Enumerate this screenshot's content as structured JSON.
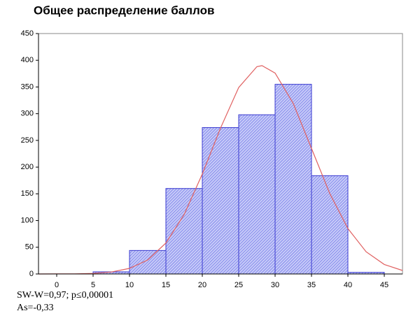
{
  "chart_data": {
    "type": "histogram",
    "title": "Общее распределение баллов",
    "bins": [
      5,
      10,
      15,
      20,
      25,
      30,
      35,
      40,
      45
    ],
    "values": [
      4,
      44,
      160,
      274,
      298,
      355,
      184,
      3
    ],
    "color": "#3a3ad0",
    "curve": {
      "color": "#e06060",
      "x": [
        -2.5,
        0,
        2.5,
        5,
        7.5,
        10,
        12.5,
        15,
        17.5,
        20,
        22.5,
        25,
        27.5,
        28.2,
        30,
        32.5,
        35,
        37.5,
        40,
        42.5,
        45,
        47.5
      ],
      "values": [
        0,
        0.1,
        0.3,
        1.1,
        3.6,
        10.4,
        26.2,
        58,
        111,
        187,
        273,
        349,
        388,
        390,
        376,
        319,
        235,
        151,
        85,
        41.6,
        17.8,
        6.6
      ]
    },
    "xlim": [
      -2.5,
      47.5
    ],
    "xticks": [
      0,
      5,
      10,
      15,
      20,
      25,
      30,
      35,
      40,
      45
    ],
    "ylim": [
      0,
      450
    ],
    "yticks": [
      0,
      50,
      100,
      150,
      200,
      250,
      300,
      350,
      400,
      450
    ],
    "grid": false,
    "annotations": [
      "SW-W=0,97; p≤0,00001",
      "As=-0,33"
    ]
  }
}
